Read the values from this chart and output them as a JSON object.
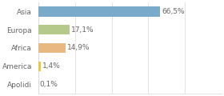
{
  "categories": [
    "Asia",
    "Europa",
    "Africa",
    "America",
    "Apolidi"
  ],
  "values": [
    66.5,
    17.1,
    14.9,
    1.4,
    0.1
  ],
  "labels": [
    "66,5%",
    "17,1%",
    "14,9%",
    "1,4%",
    "0,1%"
  ],
  "bar_colors": [
    "#7aaaca",
    "#b5c98a",
    "#e8b882",
    "#e8c840",
    "#cccccc"
  ],
  "background_color": "#ffffff",
  "xlim": [
    0,
    100
  ],
  "bar_height": 0.55,
  "label_fontsize": 6.5,
  "category_fontsize": 6.5,
  "grid_color": "#d8d8d8",
  "text_color": "#666666"
}
